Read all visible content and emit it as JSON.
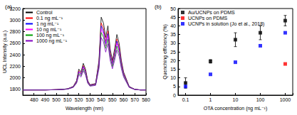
{
  "chart_data": [
    {
      "type": "line",
      "panel": "(a)",
      "x_label": "Wavelength (nm)",
      "y_label": "UCL Intensity (a.u.)",
      "x": [
        470,
        480,
        490,
        500,
        505,
        510,
        515,
        518,
        520,
        522,
        524,
        526,
        528,
        530,
        535,
        538,
        540,
        542,
        544,
        546,
        548,
        550,
        552,
        554,
        556,
        558,
        560,
        565,
        570,
        575,
        580
      ],
      "series": [
        {
          "name": "Control",
          "color": "#000000",
          "values": [
            1790,
            1790,
            1790,
            1795,
            1800,
            1810,
            1850,
            1950,
            2150,
            2100,
            2250,
            2150,
            1950,
            1880,
            1900,
            2300,
            3050,
            2950,
            2700,
            2900,
            2500,
            2300,
            2500,
            2750,
            2600,
            2300,
            2100,
            1850,
            1800,
            1790,
            1790
          ]
        },
        {
          "name": "0.1 ng mL⁻¹",
          "color": "#ff0000",
          "values": [
            1790,
            1790,
            1790,
            1795,
            1799,
            1808,
            1845,
            1937,
            2121,
            2075,
            2213,
            2121,
            1937,
            1873,
            1891,
            2259,
            2949,
            2857,
            2627,
            2811,
            2443,
            2259,
            2443,
            2673,
            2535,
            2259,
            2075,
            1845,
            1799,
            1790,
            1790
          ]
        },
        {
          "name": "1 ng mL⁻¹",
          "color": "#0000ff",
          "values": [
            1790,
            1790,
            1790,
            1794,
            1799,
            1808,
            1843,
            1931,
            2107,
            2063,
            2195,
            2107,
            1931,
            1869,
            1887,
            2239,
            2899,
            2811,
            2591,
            2767,
            2415,
            2239,
            2415,
            2635,
            2503,
            2239,
            2063,
            1843,
            1799,
            1790,
            1790
          ]
        },
        {
          "name": "10 ng mL⁻¹",
          "color": "#ff00ff",
          "values": [
            1790,
            1790,
            1790,
            1794,
            1798,
            1807,
            1840,
            1924,
            2092,
            2050,
            2176,
            2092,
            1924,
            1866,
            1882,
            2218,
            2848,
            2764,
            2554,
            2722,
            2386,
            2218,
            2386,
            2596,
            2470,
            2218,
            2050,
            1840,
            1798,
            1790,
            1790
          ]
        },
        {
          "name": "100 ng mL⁻¹",
          "color": "#00a000",
          "values": [
            1790,
            1790,
            1790,
            1794,
            1798,
            1806,
            1837,
            1916,
            2074,
            2035,
            2153,
            2074,
            1916,
            1861,
            1877,
            2193,
            2785,
            2706,
            2509,
            2667,
            2351,
            2193,
            2351,
            2548,
            2430,
            2193,
            2035,
            1837,
            1798,
            1790,
            1790
          ]
        },
        {
          "name": "1000 ng mL⁻¹",
          "color": "#8000c0",
          "values": [
            1790,
            1790,
            1790,
            1794,
            1797,
            1804,
            1833,
            1905,
            2049,
            2013,
            2121,
            2049,
            1905,
            1855,
            1869,
            2157,
            2697,
            2625,
            2445,
            2589,
            2301,
            2157,
            2301,
            2481,
            2373,
            2157,
            2013,
            1833,
            1797,
            1790,
            1790
          ]
        }
      ],
      "xlim": [
        470,
        580
      ],
      "xticks": [
        480,
        490,
        500,
        510,
        520,
        530,
        540,
        550,
        560,
        570,
        580
      ],
      "ylim": [
        1700,
        3200
      ],
      "yticks": [
        1800,
        2000,
        2200,
        2400,
        2600,
        2800,
        3000,
        3200
      ],
      "legend": "upper left",
      "grid": false
    },
    {
      "type": "scatter",
      "panel": "(b)",
      "x_label": "OTA concentration (ng mL⁻¹)",
      "y_label": "Quenching efficiency (%)",
      "log": "x",
      "marker": "square",
      "x": [
        0.1,
        1,
        10,
        100,
        1000
      ],
      "series": [
        {
          "name": "Au/UCNPs on PDMS",
          "color": "#000000",
          "values": [
            7,
            19.5,
            32,
            36,
            43
          ],
          "errors": [
            3,
            1,
            4,
            4,
            3
          ]
        },
        {
          "name": "UCNPs on PDMS",
          "color": "#ff0000",
          "values": [
            null,
            null,
            null,
            null,
            18
          ]
        },
        {
          "name": "UCNPs in solution (Jo et al., 2018)",
          "color": "#0000ff",
          "values": [
            5,
            12,
            19,
            28.5,
            36
          ]
        }
      ],
      "xlim": [
        0.05,
        2000
      ],
      "xticks": [
        0.1,
        1,
        10,
        100,
        1000
      ],
      "ylim": [
        0,
        50
      ],
      "yticks": [
        0,
        5,
        10,
        15,
        20,
        25,
        30,
        35,
        40,
        45,
        50
      ],
      "legend": "upper left",
      "grid": false
    }
  ]
}
